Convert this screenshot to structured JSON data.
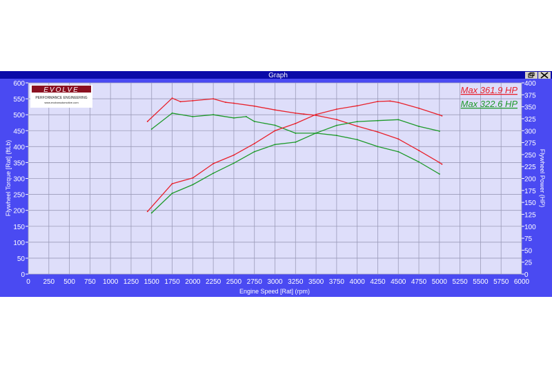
{
  "window": {
    "title": "Graph",
    "restore_icon": "restore-window-icon",
    "close_icon": "close-icon"
  },
  "logo": {
    "brand": "EVOLVE",
    "tagline": "PERFORMANCE ENGINEERING",
    "url": "www.evolveautomotive.com"
  },
  "colors": {
    "frame": "#4a4af2",
    "titlebar": "#0a0aa8",
    "plot_bg": "#dedefa",
    "grid": "#9a9ab8",
    "run1": "#e8202a",
    "run2": "#1e9a2a"
  },
  "chart_data": {
    "type": "line",
    "title": "",
    "xlabel": "Engine Speed [Rat] (rpm)",
    "ylabel": "Flywheel Torque [Rat] (ftLb)",
    "y2label": "Flywheel Power (HP)",
    "xlim": [
      0,
      6000
    ],
    "ylim": [
      0,
      600
    ],
    "y2lim": [
      0,
      400
    ],
    "grid": true,
    "xticks": [
      0,
      250,
      500,
      750,
      1000,
      1250,
      1500,
      1750,
      2000,
      2250,
      2500,
      2750,
      3000,
      3250,
      3500,
      3750,
      4000,
      4250,
      4500,
      4750,
      5000,
      5250,
      5500,
      5750,
      6000
    ],
    "yticks": [
      0,
      50,
      100,
      150,
      200,
      250,
      300,
      350,
      400,
      450,
      500,
      550,
      600
    ],
    "y2ticks": [
      0,
      25,
      50,
      75,
      100,
      125,
      150,
      175,
      200,
      225,
      250,
      275,
      300,
      325,
      350,
      375,
      400
    ],
    "legend": {
      "placement": "top-right",
      "entries": [
        {
          "label": "Max 361.9 HP",
          "color": "#e8202a"
        },
        {
          "label": "Max 322.6 HP",
          "color": "#1e9a2a"
        }
      ]
    },
    "series": [
      {
        "quantity": "torque",
        "axis": "left",
        "color": "#e8202a",
        "x": [
          1450,
          1750,
          1850,
          2000,
          2250,
          2400,
          2500,
          2750,
          3000,
          3250,
          3350,
          3500,
          3750,
          4000,
          4250,
          4500,
          4750,
          5000,
          5030
        ],
        "y": [
          479,
          552,
          541,
          544,
          550,
          539,
          536,
          527,
          515,
          505,
          502,
          498,
          485,
          464,
          446,
          424,
          388,
          350,
          345
        ]
      },
      {
        "quantity": "torque",
        "axis": "left",
        "color": "#1e9a2a",
        "x": [
          1500,
          1750,
          2000,
          2250,
          2500,
          2650,
          2750,
          3000,
          3250,
          3500,
          3750,
          4000,
          4250,
          4500,
          4750,
          5000
        ],
        "y": [
          455,
          505,
          494,
          500,
          490,
          494,
          479,
          467,
          442,
          442,
          435,
          422,
          400,
          384,
          352,
          314
        ]
      },
      {
        "quantity": "power",
        "axis": "right",
        "color": "#e8202a",
        "x": [
          1450,
          1750,
          2000,
          2250,
          2500,
          2750,
          3000,
          3250,
          3500,
          3750,
          4000,
          4250,
          4400,
          4500,
          4750,
          5000,
          5030
        ],
        "y": [
          131,
          189,
          201,
          231,
          249,
          273,
          300,
          315,
          334,
          345,
          352,
          361,
          362,
          359,
          347,
          333,
          331
        ]
      },
      {
        "quantity": "power",
        "axis": "right",
        "color": "#1e9a2a",
        "x": [
          1500,
          1750,
          2000,
          2250,
          2500,
          2750,
          3000,
          3250,
          3500,
          3750,
          4000,
          4250,
          4500,
          4750,
          5000
        ],
        "y": [
          128,
          169,
          187,
          211,
          232,
          256,
          271,
          276,
          295,
          311,
          319,
          321,
          323,
          309,
          299
        ]
      }
    ]
  }
}
